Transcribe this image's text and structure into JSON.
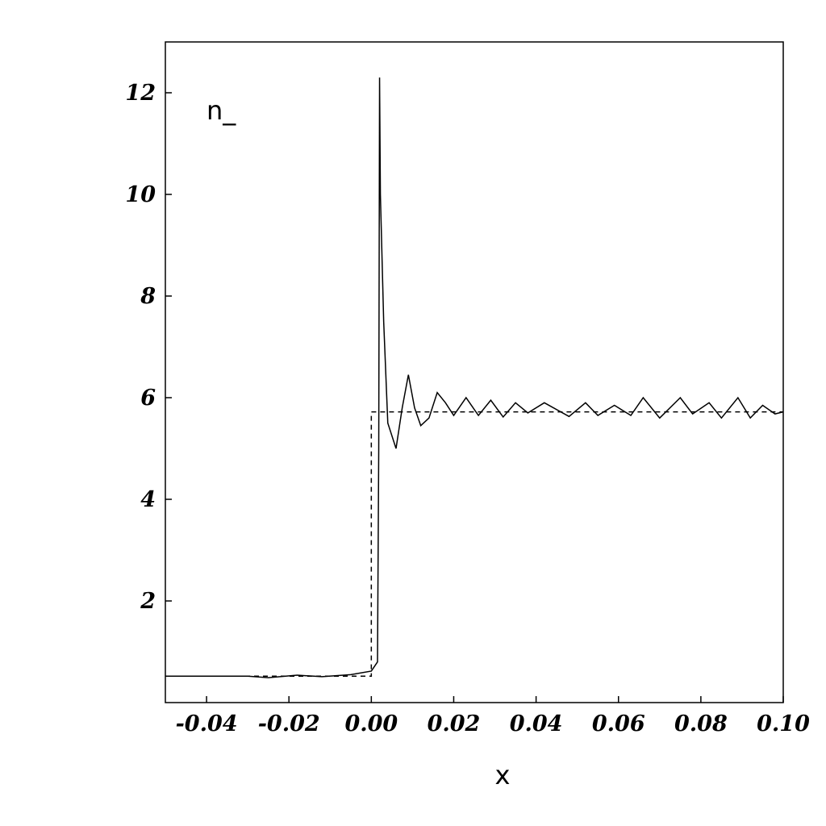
{
  "chart_data": {
    "type": "line",
    "annotation": "n_",
    "x_label": "x",
    "xlim": [
      -0.05,
      0.1
    ],
    "ylim": [
      0,
      13
    ],
    "xticks": [
      {
        "value": -0.04,
        "label": "-0.04"
      },
      {
        "value": -0.02,
        "label": "-0.02"
      },
      {
        "value": 0,
        "label": "0.00"
      },
      {
        "value": 0.02,
        "label": "0.02"
      },
      {
        "value": 0.04,
        "label": "0.04"
      },
      {
        "value": 0.06,
        "label": "0.06"
      },
      {
        "value": 0.08,
        "label": "0.08"
      },
      {
        "value": 0.1,
        "label": "0.10"
      }
    ],
    "yticks": [
      2,
      4,
      6,
      8,
      10,
      12
    ],
    "series": [
      {
        "color": "#000000",
        "dashed": false,
        "x": [
          -0.05,
          -0.03,
          -0.025,
          -0.018,
          -0.012,
          -0.005,
          0.0,
          0.0015,
          0.0018,
          0.002,
          0.0022,
          0.003,
          0.004,
          0.006,
          0.0075,
          0.009,
          0.0105,
          0.012,
          0.014,
          0.016,
          0.018,
          0.02,
          0.023,
          0.026,
          0.029,
          0.032,
          0.035,
          0.038,
          0.042,
          0.048,
          0.052,
          0.055,
          0.059,
          0.063,
          0.066,
          0.07,
          0.075,
          0.078,
          0.082,
          0.085,
          0.089,
          0.092,
          0.095,
          0.098,
          0.1
        ],
        "values": [
          0.52,
          0.52,
          0.49,
          0.54,
          0.51,
          0.55,
          0.62,
          0.8,
          5,
          12.3,
          10,
          7.5,
          5.5,
          5.0,
          5.8,
          6.45,
          5.8,
          5.45,
          5.6,
          6.1,
          5.9,
          5.65,
          6.0,
          5.65,
          5.95,
          5.62,
          5.9,
          5.7,
          5.9,
          5.63,
          5.9,
          5.65,
          5.85,
          5.65,
          6.0,
          5.6,
          6.0,
          5.68,
          5.9,
          5.6,
          6.0,
          5.6,
          5.85,
          5.68,
          5.72
        ]
      },
      {
        "color": "#000000",
        "dashed": true,
        "x": [
          -0.05,
          0.0,
          0.0,
          0.1
        ],
        "values": [
          0.52,
          0.52,
          5.72,
          5.72
        ]
      }
    ]
  }
}
